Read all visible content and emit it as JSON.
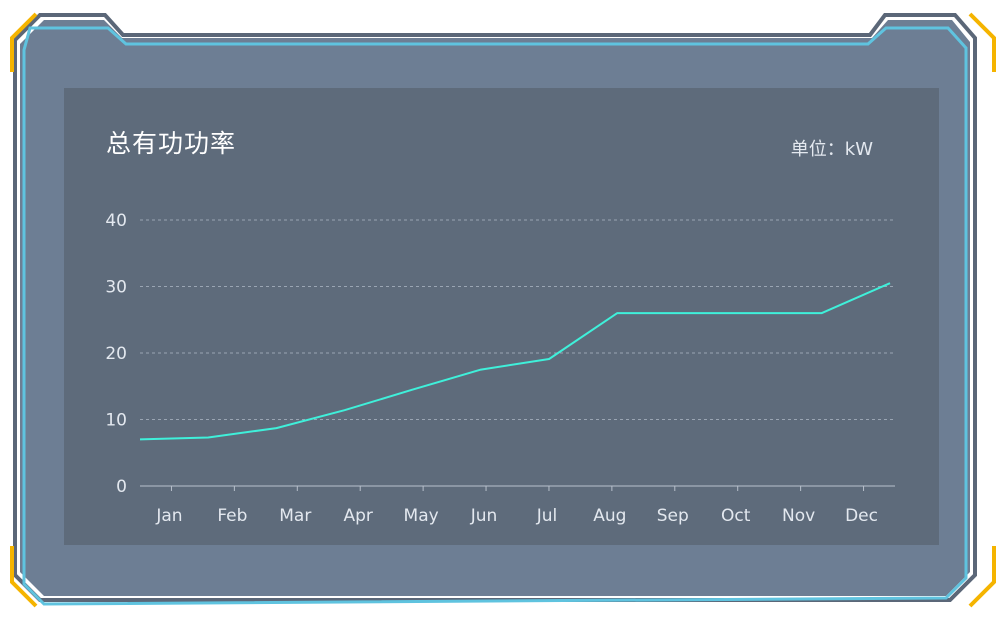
{
  "chart_data": {
    "type": "line",
    "title": "总有功功率",
    "unit_label": "单位：kW",
    "categories": [
      "Jan",
      "Feb",
      "Mar",
      "Apr",
      "May",
      "Jun",
      "Jul",
      "Aug",
      "Sep",
      "Oct",
      "Nov",
      "Dec"
    ],
    "x": [
      0,
      1.05,
      2.1,
      3.15,
      4.2,
      5.25,
      6.3,
      7.35,
      8.4,
      9.45,
      10.5,
      11.55
    ],
    "series": [
      {
        "values": [
          7,
          7.3,
          8.7,
          11.4,
          14.5,
          17.5,
          19.1,
          26,
          26,
          26,
          26,
          30.5
        ],
        "color": "#3ff0da"
      }
    ],
    "ylim": [
      0,
      40
    ],
    "yticks": [
      0,
      10,
      20,
      30,
      40
    ],
    "grid": true,
    "legend": "none"
  },
  "colors": {
    "frame_fill": "#6d7e94",
    "frame_border": "#5fc3df",
    "corner_accent": "#f5b400",
    "panel": "#5e6b7b",
    "axis_text": "#e3e8ef",
    "grid": "#aab4c2"
  }
}
